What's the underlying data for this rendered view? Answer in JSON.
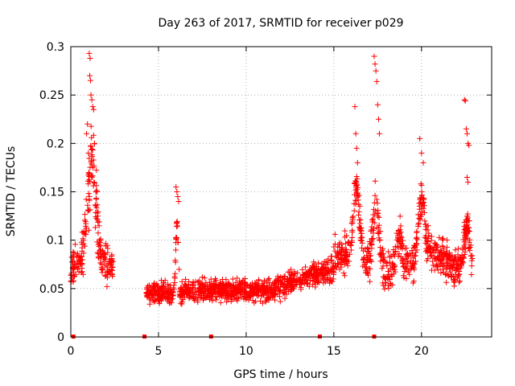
{
  "chart_data": {
    "type": "scatter",
    "title": "Day 263 of 2017, SRMTID for receiver p029",
    "xlabel": "GPS time / hours",
    "ylabel": "SRMTID / TECUs",
    "xlim": [
      0,
      24
    ],
    "ylim": [
      0,
      0.3
    ],
    "x_ticks": [
      0,
      5,
      10,
      15,
      20
    ],
    "y_ticks": [
      0,
      0.05,
      0.1,
      0.15,
      0.2,
      0.25,
      0.3
    ],
    "x_tick_labels": [
      "0",
      "5",
      "10",
      "15",
      "20"
    ],
    "y_tick_labels": [
      "0",
      "0.05",
      "0.1",
      "0.15",
      "0.2",
      "0.25",
      "0.3"
    ],
    "grid": true,
    "marker": "+",
    "color": "#ff0000",
    "series": [
      {
        "name": "SRMTID",
        "segments": [
          {
            "start": 0.0,
            "end": 2.4,
            "peak_hour": 1.2,
            "peak_value": 0.295,
            "base_value": 0.08
          },
          {
            "start": 4.3,
            "end": 22.9,
            "base_value": 0.05
          }
        ],
        "burst_points": [
          {
            "x": 1.05,
            "y": 0.293
          },
          {
            "x": 1.1,
            "y": 0.288
          },
          {
            "x": 1.08,
            "y": 0.27
          },
          {
            "x": 1.12,
            "y": 0.265
          },
          {
            "x": 1.15,
            "y": 0.25
          },
          {
            "x": 1.2,
            "y": 0.245
          },
          {
            "x": 1.25,
            "y": 0.238
          },
          {
            "x": 1.3,
            "y": 0.235
          },
          {
            "x": 0.95,
            "y": 0.22
          },
          {
            "x": 0.9,
            "y": 0.21
          },
          {
            "x": 1.35,
            "y": 0.2
          },
          {
            "x": 1.0,
            "y": 0.19
          },
          {
            "x": 6.0,
            "y": 0.155
          },
          {
            "x": 6.05,
            "y": 0.15
          },
          {
            "x": 6.1,
            "y": 0.145
          },
          {
            "x": 6.15,
            "y": 0.14
          },
          {
            "x": 16.2,
            "y": 0.238
          },
          {
            "x": 16.25,
            "y": 0.21
          },
          {
            "x": 16.3,
            "y": 0.195
          },
          {
            "x": 16.35,
            "y": 0.18
          },
          {
            "x": 17.3,
            "y": 0.29
          },
          {
            "x": 17.35,
            "y": 0.282
          },
          {
            "x": 17.4,
            "y": 0.275
          },
          {
            "x": 17.45,
            "y": 0.264
          },
          {
            "x": 17.5,
            "y": 0.24
          },
          {
            "x": 17.55,
            "y": 0.225
          },
          {
            "x": 17.6,
            "y": 0.21
          },
          {
            "x": 19.9,
            "y": 0.205
          },
          {
            "x": 20.0,
            "y": 0.19
          },
          {
            "x": 20.1,
            "y": 0.18
          },
          {
            "x": 22.45,
            "y": 0.245
          },
          {
            "x": 22.5,
            "y": 0.244
          },
          {
            "x": 22.55,
            "y": 0.215
          },
          {
            "x": 22.6,
            "y": 0.21
          },
          {
            "x": 22.65,
            "y": 0.2
          },
          {
            "x": 22.7,
            "y": 0.198
          },
          {
            "x": 22.6,
            "y": 0.165
          },
          {
            "x": 22.65,
            "y": 0.16
          }
        ],
        "gap_markers": [
          0.15,
          4.2,
          8.0,
          14.2,
          17.3
        ]
      }
    ]
  }
}
